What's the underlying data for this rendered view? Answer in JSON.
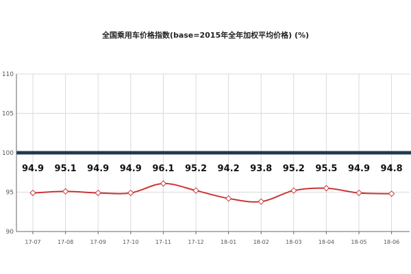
{
  "chart_data": {
    "type": "line",
    "title": "全国乘用车价格指数(base=2015年全年加权平均价格) (%)",
    "xlabel": "",
    "ylabel": "",
    "categories": [
      "17-07",
      "17-08",
      "17-09",
      "17-10",
      "17-11",
      "17-12",
      "18-01",
      "18-02",
      "18-03",
      "18-04",
      "18-05",
      "18-06"
    ],
    "series": [
      {
        "values": [
          94.9,
          95.1,
          94.9,
          94.9,
          96.1,
          95.2,
          94.2,
          93.8,
          95.2,
          95.5,
          94.9,
          94.8
        ]
      }
    ],
    "data_labels": [
      "94.9",
      "95.1",
      "94.9",
      "94.9",
      "96.1",
      "95.2",
      "94.2",
      "93.8",
      "95.2",
      "95.5",
      "94.9",
      "94.8"
    ],
    "ylim": [
      90,
      110
    ],
    "yticks": [
      "90",
      "95",
      "100",
      "105",
      "110"
    ],
    "reference_line": 100,
    "grid": true,
    "legend": "none",
    "colors": {
      "line": "#cc3333",
      "marker_fill": "#ffffff",
      "reference": "#1f3a4d",
      "grid": "#d9d9d9"
    }
  }
}
